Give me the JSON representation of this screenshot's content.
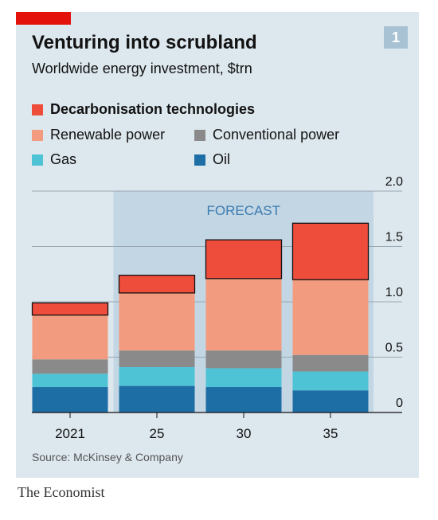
{
  "header": {
    "title": "Venturing into scrubland",
    "subtitle": "Worldwide energy investment, $trn",
    "badge": "1"
  },
  "colors": {
    "panel": "#dde7ee",
    "forecast_band": "#c3d6e3",
    "decarbonisation": "#ee4d3c",
    "renewable": "#f39b7f",
    "conventional": "#8a8a8b",
    "gas": "#4ec3d6",
    "oil": "#1e6ea6"
  },
  "legend": [
    {
      "label": "Decarbonisation technologies",
      "color": "#ee4d3c",
      "bold": true
    },
    {
      "label": "Renewable power",
      "color": "#f39b7f",
      "bold": false
    },
    {
      "label": "Conventional power",
      "color": "#8a8a8b",
      "bold": false
    },
    {
      "label": "Gas",
      "color": "#4ec3d6",
      "bold": false
    },
    {
      "label": "Oil",
      "color": "#1e6ea6",
      "bold": false
    }
  ],
  "chart_data": {
    "type": "bar",
    "stacked": true,
    "categories": [
      "2021",
      "25",
      "30",
      "35"
    ],
    "series": [
      {
        "name": "Oil",
        "values": [
          0.23,
          0.24,
          0.23,
          0.2
        ]
      },
      {
        "name": "Gas",
        "values": [
          0.12,
          0.17,
          0.17,
          0.17
        ]
      },
      {
        "name": "Conventional power",
        "values": [
          0.13,
          0.15,
          0.16,
          0.15
        ]
      },
      {
        "name": "Renewable power",
        "values": [
          0.4,
          0.52,
          0.65,
          0.68
        ]
      },
      {
        "name": "Decarbonisation technologies",
        "values": [
          0.11,
          0.16,
          0.35,
          0.51
        ]
      }
    ],
    "yticks": [
      "0",
      "0.5",
      "1.0",
      "1.5",
      "2.0"
    ],
    "ylim": [
      0,
      2.0
    ],
    "forecast_label": "FORECAST",
    "forecast_categories": [
      "25",
      "30",
      "35"
    ],
    "grid": true,
    "legend_position": "top-left"
  },
  "footer": {
    "source": "Source: McKinsey & Company",
    "brand": "The Economist"
  }
}
